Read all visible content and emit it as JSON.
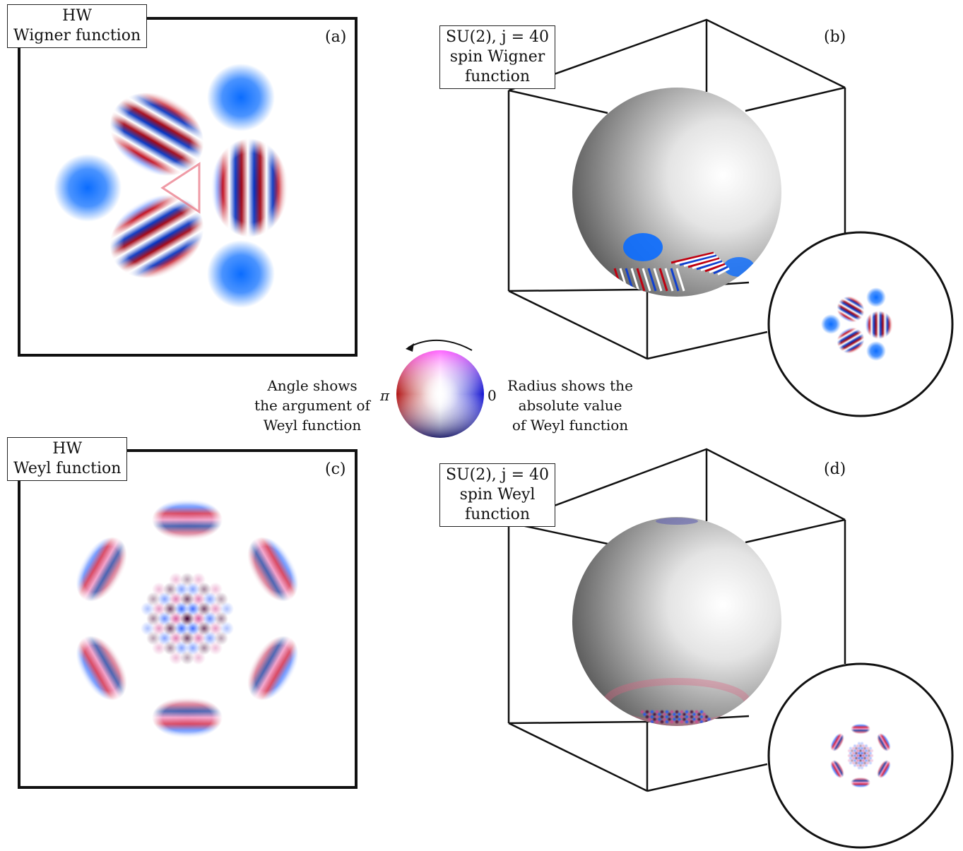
{
  "panels": {
    "a": {
      "tag": "(a)",
      "label_line1": "HW",
      "label_line2": "Wigner function"
    },
    "b": {
      "tag": "(b)",
      "label_line1": "SU(2), j = 40",
      "label_line2": "spin Wigner",
      "label_line3": "function"
    },
    "c": {
      "tag": "(c)",
      "label_line1": "HW",
      "label_line2": "Weyl function"
    },
    "d": {
      "tag": "(d)",
      "label_line1": "SU(2), j = 40",
      "label_line2": "spin Weyl",
      "label_line3": "function"
    }
  },
  "legend": {
    "left_line1": "Angle shows",
    "left_line2": "the argument of",
    "left_line3": "Weyl function",
    "right_line1": "Radius shows the",
    "right_line2": "absolute value",
    "right_line3": "of Weyl function",
    "pi_label": "π",
    "zero_label": "0"
  },
  "colors": {
    "positive_blue": "#0a6cff",
    "negative_red": "#c00010",
    "frame": "#111111"
  }
}
